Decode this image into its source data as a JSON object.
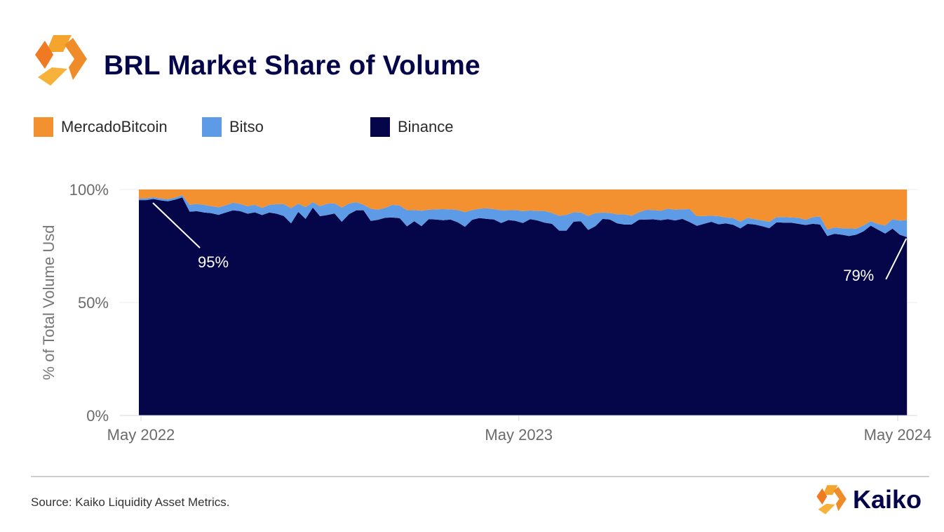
{
  "header": {
    "title": "BRL Market Share of Volume",
    "logo_icon": "kaiko-logo-icon"
  },
  "colors": {
    "mercado": "#f39130",
    "bitso": "#5e9be6",
    "binance": "#05054a",
    "annotation": "#ffffff"
  },
  "legend": [
    {
      "label": "MercadoBitcoin",
      "color": "#f39130"
    },
    {
      "label": "Bitso",
      "color": "#5e9be6"
    },
    {
      "label": "Binance",
      "color": "#05054a"
    }
  ],
  "chart_data": {
    "type": "area",
    "stacked": true,
    "ylabel": "% of Total Volume Usd",
    "ylim": [
      0,
      100
    ],
    "yticks": [
      {
        "value": 100,
        "label": "100%"
      },
      {
        "value": 50,
        "label": "50%"
      },
      {
        "value": 0,
        "label": "0%"
      }
    ],
    "xlim": [
      "2022-04-10",
      "2024-05-20"
    ],
    "xticks": [
      {
        "value": "2022-05-01",
        "label": "May 2022"
      },
      {
        "value": "2023-05-01",
        "label": "May 2023"
      },
      {
        "value": "2024-05-01",
        "label": "May 2024"
      }
    ],
    "x": [
      "2022-04-29",
      "2022-05-06",
      "2022-05-13",
      "2022-05-20",
      "2022-05-27",
      "2022-06-03",
      "2022-06-10",
      "2022-06-17",
      "2022-06-24",
      "2022-07-01",
      "2022-07-08",
      "2022-07-15",
      "2022-07-22",
      "2022-07-29",
      "2022-08-05",
      "2022-08-12",
      "2022-08-19",
      "2022-08-26",
      "2022-09-02",
      "2022-09-09",
      "2022-09-16",
      "2022-09-23",
      "2022-09-30",
      "2022-10-07",
      "2022-10-14",
      "2022-10-21",
      "2022-10-28",
      "2022-11-04",
      "2022-11-11",
      "2022-11-18",
      "2022-11-25",
      "2022-12-02",
      "2022-12-09",
      "2022-12-16",
      "2022-12-23",
      "2022-12-30",
      "2023-01-06",
      "2023-01-13",
      "2023-01-20",
      "2023-01-27",
      "2023-02-03",
      "2023-02-10",
      "2023-02-17",
      "2023-02-24",
      "2023-03-03",
      "2023-03-10",
      "2023-03-17",
      "2023-03-24",
      "2023-03-31",
      "2023-04-07",
      "2023-04-14",
      "2023-04-21",
      "2023-04-28",
      "2023-05-05",
      "2023-05-12",
      "2023-05-19",
      "2023-05-26",
      "2023-06-02",
      "2023-06-09",
      "2023-06-16",
      "2023-06-23",
      "2023-06-30",
      "2023-07-07",
      "2023-07-14",
      "2023-07-21",
      "2023-07-28",
      "2023-08-04",
      "2023-08-11",
      "2023-08-18",
      "2023-08-25",
      "2023-09-01",
      "2023-09-08",
      "2023-09-15",
      "2023-09-22",
      "2023-09-29",
      "2023-10-06",
      "2023-10-13",
      "2023-10-20",
      "2023-10-27",
      "2023-11-03",
      "2023-11-10",
      "2023-11-17",
      "2023-11-24",
      "2023-12-01",
      "2023-12-08",
      "2023-12-15",
      "2023-12-22",
      "2023-12-29",
      "2024-01-05",
      "2024-01-12",
      "2024-01-19",
      "2024-01-26",
      "2024-02-02",
      "2024-02-09",
      "2024-02-16",
      "2024-02-23",
      "2024-03-01",
      "2024-03-08",
      "2024-03-15",
      "2024-03-22",
      "2024-03-29",
      "2024-04-05",
      "2024-04-12",
      "2024-04-19",
      "2024-04-26",
      "2024-05-03",
      "2024-05-10"
    ],
    "series": [
      {
        "name": "Binance",
        "values": [
          95.3,
          95.3,
          95.8,
          95.2,
          94.8,
          95.5,
          96.5,
          90.2,
          90.4,
          89.8,
          89.5,
          88.8,
          89.8,
          90.8,
          90.4,
          89.3,
          89.9,
          88.7,
          89.8,
          89.3,
          88.3,
          85.0,
          90.1,
          87.0,
          92.0,
          88.2,
          88.7,
          89.4,
          85.7,
          89.1,
          90.8,
          90.8,
          86.1,
          86.6,
          87.5,
          87.6,
          87.3,
          83.7,
          86.0,
          83.8,
          86.9,
          86.7,
          86.4,
          86.7,
          85.5,
          83.5,
          86.6,
          87.4,
          87.0,
          86.7,
          85.2,
          86.5,
          86.1,
          85.2,
          86.9,
          86.3,
          85.3,
          84.8,
          81.8,
          81.8,
          85.8,
          85.9,
          82.1,
          83.8,
          87.0,
          86.7,
          85.0,
          84.5,
          84.5,
          86.6,
          86.7,
          86.8,
          86.4,
          86.9,
          86.3,
          87.0,
          85.6,
          83.9,
          84.8,
          85.7,
          84.6,
          85.0,
          84.4,
          82.8,
          84.8,
          84.5,
          83.8,
          82.9,
          85.5,
          85.3,
          85.3,
          84.8,
          84.3,
          84.8,
          84.5,
          79.4,
          80.4,
          80.0,
          79.4,
          80.0,
          81.5,
          84.0,
          82.2,
          80.5,
          82.7,
          80.0,
          78.9
        ]
      },
      {
        "name": "Bitso",
        "values": [
          0.8,
          0.8,
          0.8,
          0.8,
          0.9,
          0.9,
          1.0,
          3.0,
          3.2,
          3.4,
          3.1,
          3.3,
          3.2,
          3.4,
          3.2,
          3.3,
          3.3,
          3.2,
          3.4,
          4.2,
          5.2,
          6.8,
          3.6,
          5.2,
          2.4,
          4.4,
          5.0,
          4.5,
          6.3,
          4.7,
          3.6,
          2.5,
          5.4,
          4.5,
          4.4,
          5.6,
          5.6,
          7.1,
          4.9,
          6.8,
          4.2,
          4.5,
          4.9,
          4.5,
          5.4,
          6.5,
          4.3,
          4.1,
          4.7,
          4.6,
          5.6,
          4.3,
          4.8,
          5.2,
          3.8,
          4.2,
          5.2,
          4.8,
          6.6,
          7.0,
          4.1,
          3.9,
          6.2,
          5.7,
          2.8,
          2.9,
          4.0,
          4.5,
          3.9,
          3.3,
          4.3,
          4.1,
          4.2,
          4.6,
          4.8,
          4.2,
          5.7,
          4.3,
          3.5,
          2.7,
          3.6,
          2.6,
          3.0,
          3.0,
          2.7,
          2.4,
          2.5,
          2.8,
          2.3,
          2.5,
          2.3,
          2.7,
          2.3,
          3.0,
          3.5,
          2.9,
          2.8,
          2.9,
          3.4,
          2.7,
          2.6,
          2.0,
          2.5,
          3.6,
          4.2,
          6.2,
          7.6
        ]
      },
      {
        "name": "MercadoBitcoin",
        "values": [
          3.9,
          3.9,
          3.4,
          4.0,
          4.3,
          3.6,
          2.5,
          6.8,
          6.4,
          6.8,
          7.4,
          7.9,
          7.0,
          5.8,
          6.4,
          7.4,
          6.8,
          8.1,
          6.8,
          6.5,
          6.5,
          8.2,
          6.3,
          7.8,
          5.6,
          7.4,
          6.3,
          6.1,
          8.0,
          6.2,
          5.6,
          6.7,
          8.5,
          8.9,
          8.1,
          6.8,
          7.1,
          9.2,
          9.1,
          9.4,
          8.9,
          8.8,
          8.7,
          8.8,
          9.1,
          10.0,
          9.1,
          8.5,
          8.3,
          8.7,
          9.2,
          9.2,
          9.1,
          9.6,
          9.3,
          9.5,
          9.5,
          10.4,
          11.6,
          11.2,
          10.1,
          10.2,
          11.7,
          10.5,
          10.2,
          10.4,
          11.0,
          11.0,
          11.6,
          10.1,
          9.0,
          9.1,
          9.4,
          8.5,
          8.9,
          8.8,
          8.7,
          11.8,
          11.7,
          11.6,
          11.8,
          12.4,
          12.6,
          14.2,
          12.5,
          13.1,
          13.7,
          14.3,
          12.2,
          12.2,
          12.4,
          12.5,
          13.4,
          12.2,
          12.0,
          17.7,
          16.8,
          17.1,
          17.2,
          17.3,
          15.9,
          14.0,
          15.3,
          15.9,
          13.1,
          13.8,
          13.5
        ]
      }
    ],
    "annotations": [
      {
        "label": "95%",
        "x": "2022-04-29",
        "y": 95.3
      },
      {
        "label": "79%",
        "x": "2024-05-10",
        "y": 78.9
      }
    ],
    "grid": true
  },
  "footer": {
    "source": "Source: Kaiko Liquidity Asset Metrics.",
    "brand": "Kaiko",
    "brand_icon": "kaiko-logo-icon"
  }
}
